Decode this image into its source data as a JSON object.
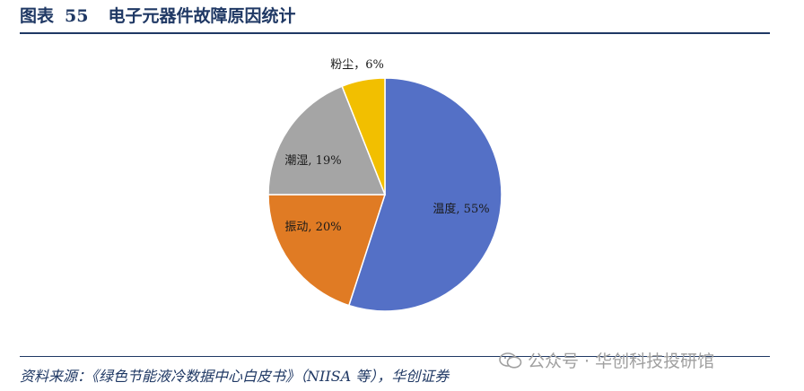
{
  "header": {
    "figure_label": "图表",
    "figure_number": "55",
    "title": "电子元器件故障原因统计"
  },
  "chart_data": {
    "type": "pie",
    "title": "",
    "slices": [
      {
        "label": "温度",
        "value": 55,
        "display": "温度, 55%",
        "color": "#5470c6"
      },
      {
        "label": "振动",
        "value": 20,
        "display": "振动, 20%",
        "color": "#e07b24"
      },
      {
        "label": "潮湿",
        "value": 19,
        "display": "潮湿, 19%",
        "color": "#a5a5a5"
      },
      {
        "label": "粉尘",
        "value": 6,
        "display": "粉尘，6%",
        "color": "#f2bf00"
      }
    ]
  },
  "footer": {
    "source": "资料来源：《绿色节能液冷数据中心白皮书》（NIISA 等），华创证券",
    "watermark": "公众号 · 华创科技投研馆"
  }
}
